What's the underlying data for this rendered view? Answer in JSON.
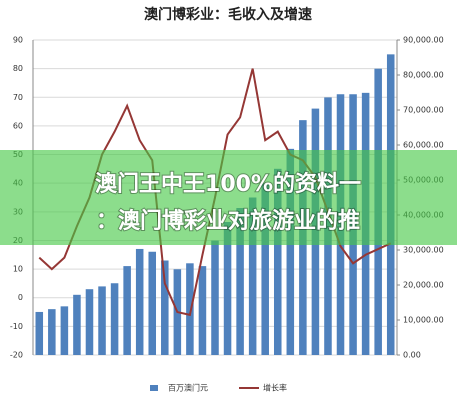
{
  "chart_data": {
    "type": "bar-line",
    "title": "澳门博彩业：毛收入及增速",
    "categories": [
      null,
      null,
      null,
      null,
      null,
      null,
      null,
      null,
      null,
      null,
      null,
      null,
      null,
      null,
      null,
      null,
      null,
      null,
      null,
      null,
      null,
      null,
      null,
      null,
      null,
      null,
      null,
      null,
      null
    ],
    "series": [
      {
        "name": "百万澳门元",
        "color": "#4f81bd",
        "axis": "y2",
        "kind": "bar",
        "values": [
          12300,
          13100,
          13900,
          17200,
          18800,
          19600,
          20500,
          25400,
          30300,
          29500,
          27000,
          24500,
          26200,
          25400,
          32700,
          38000,
          42000,
          45000,
          49000,
          53200,
          58900,
          67100,
          70400,
          73600,
          74500,
          74500,
          74900,
          81800,
          85900
        ]
      },
      {
        "name": "增长率",
        "color": "#953735",
        "axis": "y",
        "kind": "line",
        "values": [
          14,
          10,
          14,
          25,
          35,
          50,
          58,
          67,
          55,
          48,
          5,
          -5,
          -6,
          15,
          35,
          57,
          63,
          80,
          55,
          58,
          50,
          48,
          42,
          30,
          18,
          12,
          15,
          17,
          19
        ]
      }
    ],
    "ylim": [
      -20,
      90
    ],
    "yticks": [
      -20,
      -10,
      0,
      10,
      20,
      30,
      40,
      50,
      60,
      70,
      80,
      90
    ],
    "y2lim": [
      0,
      90000
    ],
    "y2ticks": [
      {
        "value": 0,
        "label": "0.00"
      },
      {
        "value": 10000,
        "label": "10,000.00"
      },
      {
        "value": 20000,
        "label": "20,000.00"
      },
      {
        "value": 30000,
        "label": "30,000.00"
      },
      {
        "value": 40000,
        "label": "40,000.00"
      },
      {
        "value": 50000,
        "label": "50,000.00"
      },
      {
        "value": 60000,
        "label": "60,000.00"
      },
      {
        "value": 70000,
        "label": "70,000.00"
      },
      {
        "value": 80000,
        "label": "80,000.00"
      },
      {
        "value": 90000,
        "label": "90,000.00"
      }
    ],
    "grid": true,
    "legend": "bottom"
  },
  "overlay": {
    "lines": [
      "澳门王中王100%的资料一",
      "：澳门博彩业对旅游业的推"
    ]
  }
}
